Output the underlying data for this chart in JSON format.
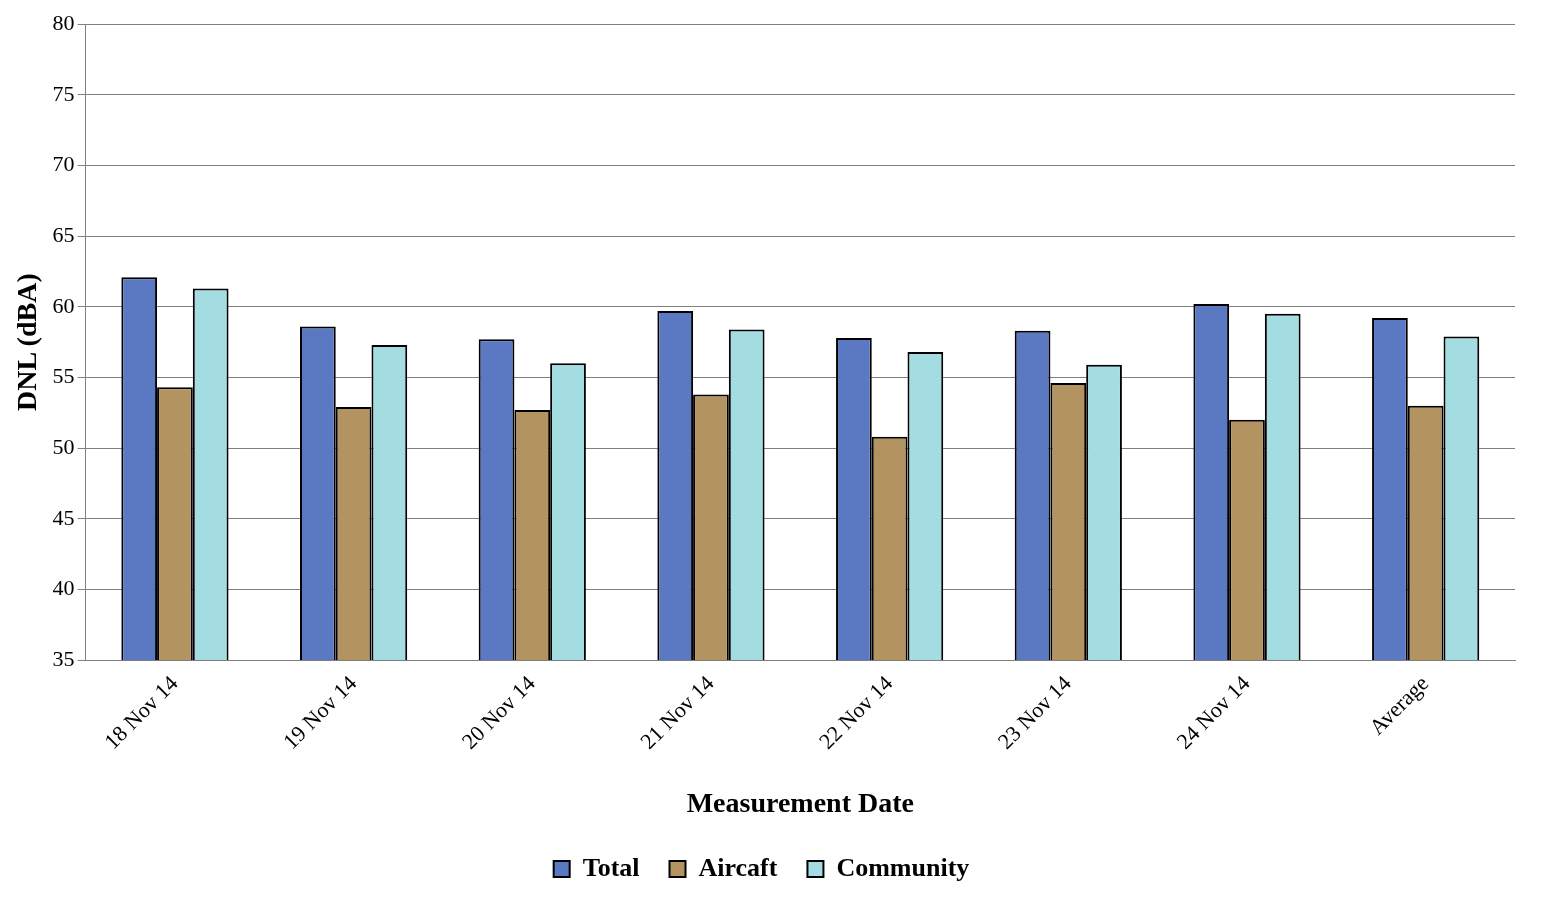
{
  "chart_data": {
    "type": "bar",
    "xlabel": "Measurement Date",
    "ylabel": "DNL (dBA)",
    "categories": [
      "18 Nov 14",
      "19 Nov 14",
      "20 Nov 14",
      "21 Nov 14",
      "22 Nov 14",
      "23 Nov 14",
      "24 Nov 14",
      "Average"
    ],
    "series": [
      {
        "name": "Total",
        "color": "#5b78c2",
        "values": [
          62.1,
          58.6,
          57.7,
          59.7,
          57.8,
          58.3,
          60.2,
          59.2
        ]
      },
      {
        "name": "Aircaft",
        "color": "#b3935f",
        "values": [
          54.3,
          52.9,
          52.7,
          53.8,
          50.8,
          54.6,
          52.0,
          53.0
        ]
      },
      {
        "name": "Community",
        "color": "#a3dde2",
        "values": [
          61.3,
          57.3,
          56.0,
          58.4,
          56.8,
          55.9,
          59.5,
          57.9
        ]
      }
    ],
    "ylim": [
      35,
      80
    ],
    "yticks": [
      35,
      40,
      45,
      50,
      55,
      60,
      65,
      70,
      75,
      80
    ],
    "grid": "y",
    "legend": "bottom"
  }
}
